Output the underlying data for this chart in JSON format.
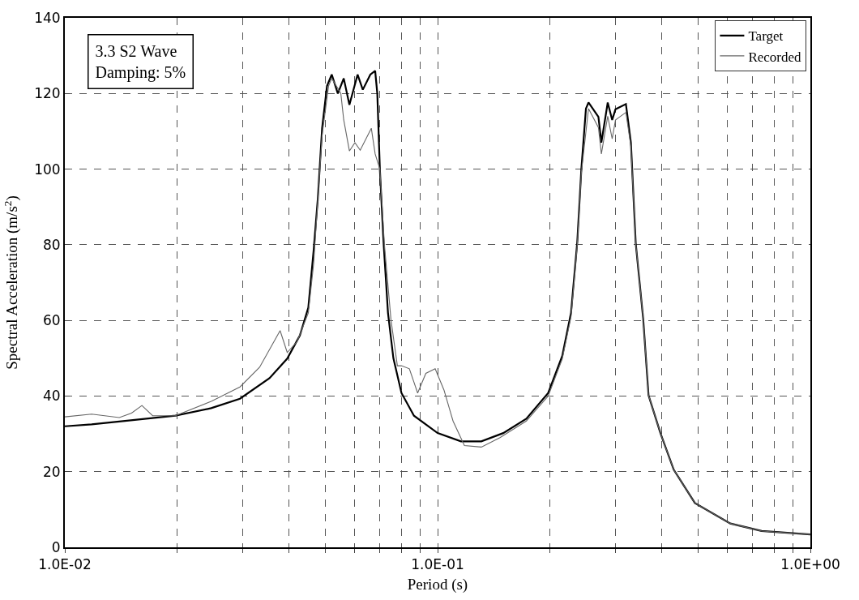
{
  "chart_data": {
    "type": "line",
    "xlabel": "Period (s)",
    "ylabel": "Spectral Acceleration (m/s$^{2}$)",
    "annotations": [
      "3.3 S2 Wave\nDamping: 5%"
    ],
    "log": "x",
    "xlim": [
      0.01,
      1.0
    ],
    "ylim": [
      0,
      140
    ],
    "xticks": [
      {
        "value": 0.01,
        "label": "1.0E-02"
      },
      {
        "value": 0.02,
        "label": null
      },
      {
        "value": 0.03,
        "label": null
      },
      {
        "value": 0.04,
        "label": null
      },
      {
        "value": 0.05,
        "label": null
      },
      {
        "value": 0.06,
        "label": null
      },
      {
        "value": 0.07,
        "label": null
      },
      {
        "value": 0.08,
        "label": null
      },
      {
        "value": 0.09,
        "label": null
      },
      {
        "value": 0.1,
        "label": "1.0E-01"
      },
      {
        "value": 0.2,
        "label": null
      },
      {
        "value": 0.3,
        "label": null
      },
      {
        "value": 0.4,
        "label": null
      },
      {
        "value": 0.5,
        "label": null
      },
      {
        "value": 0.6,
        "label": null
      },
      {
        "value": 0.7,
        "label": null
      },
      {
        "value": 0.8,
        "label": null
      },
      {
        "value": 0.9,
        "label": null
      },
      {
        "value": 1.0,
        "label": "1.0E+00"
      }
    ],
    "yticks": [
      0,
      20,
      40,
      60,
      80,
      100,
      120,
      140
    ],
    "grid": true,
    "legend": "top right",
    "marker": "none",
    "line_style": "solid",
    "series": [
      {
        "name": "Target",
        "color": "#000000",
        "x": [
          0.01,
          0.0118,
          0.0145,
          0.0198,
          0.0247,
          0.0295,
          0.0354,
          0.0395,
          0.0427,
          0.045,
          0.0465,
          0.0477,
          0.049,
          0.0505,
          0.052,
          0.054,
          0.056,
          0.058,
          0.061,
          0.063,
          0.066,
          0.068,
          0.0689,
          0.07,
          0.0716,
          0.0736,
          0.0761,
          0.08,
          0.0864,
          0.1,
          0.1155,
          0.131,
          0.15,
          0.173,
          0.198,
          0.216,
          0.228,
          0.237,
          0.243,
          0.25,
          0.254,
          0.27,
          0.275,
          0.286,
          0.294,
          0.3,
          0.32,
          0.33,
          0.34,
          0.356,
          0.368,
          0.396,
          0.43,
          0.49,
          0.61,
          0.74,
          1.0
        ],
        "values": [
          32,
          32.5,
          33.4,
          34.8,
          36.8,
          39.3,
          44.7,
          49.9,
          56,
          63.4,
          78.5,
          92,
          110.8,
          122,
          125,
          120,
          124,
          117,
          125,
          121,
          125,
          126,
          120,
          100,
          80.8,
          62,
          50,
          40.8,
          34.8,
          30.2,
          28,
          28,
          30.2,
          34,
          40.8,
          50.6,
          62,
          80.8,
          100,
          116,
          117.6,
          113.8,
          107,
          117.6,
          113,
          115.8,
          117.2,
          107,
          80.4,
          60.5,
          40.2,
          30.2,
          20.5,
          11.7,
          6.3,
          4.3,
          3.4
        ]
      },
      {
        "name": "Recorded",
        "color": "#666666",
        "x": [
          0.01,
          0.0118,
          0.014,
          0.0151,
          0.0161,
          0.0172,
          0.0198,
          0.0247,
          0.0295,
          0.0333,
          0.0378,
          0.0395,
          0.042,
          0.045,
          0.0465,
          0.049,
          0.051,
          0.052,
          0.055,
          0.056,
          0.058,
          0.06,
          0.062,
          0.0664,
          0.068,
          0.07,
          0.072,
          0.075,
          0.078,
          0.08,
          0.084,
          0.0884,
          0.093,
          0.0985,
          0.104,
          0.11,
          0.118,
          0.131,
          0.147,
          0.173,
          0.198,
          0.216,
          0.228,
          0.237,
          0.243,
          0.254,
          0.27,
          0.275,
          0.286,
          0.294,
          0.3,
          0.32,
          0.33,
          0.34,
          0.356,
          0.368,
          0.396,
          0.43,
          0.49,
          0.61,
          0.74,
          1.0
        ],
        "values": [
          34.5,
          35.2,
          34.3,
          35.5,
          37.5,
          34.8,
          34.8,
          38.6,
          42.4,
          47.6,
          57.3,
          51.5,
          54.4,
          62,
          75,
          109,
          122,
          124,
          120,
          113,
          104.8,
          107,
          105,
          110.8,
          104,
          100,
          80,
          60,
          48,
          48,
          47.2,
          40.8,
          46,
          47.2,
          41.6,
          33.4,
          26.9,
          26.5,
          29,
          33.4,
          40,
          49.8,
          61,
          80,
          99,
          116,
          111,
          104,
          114,
          108,
          113,
          115,
          106,
          80.4,
          60.5,
          40.2,
          30.2,
          20.5,
          11.7,
          6.3,
          4.3,
          3.4
        ]
      }
    ]
  }
}
